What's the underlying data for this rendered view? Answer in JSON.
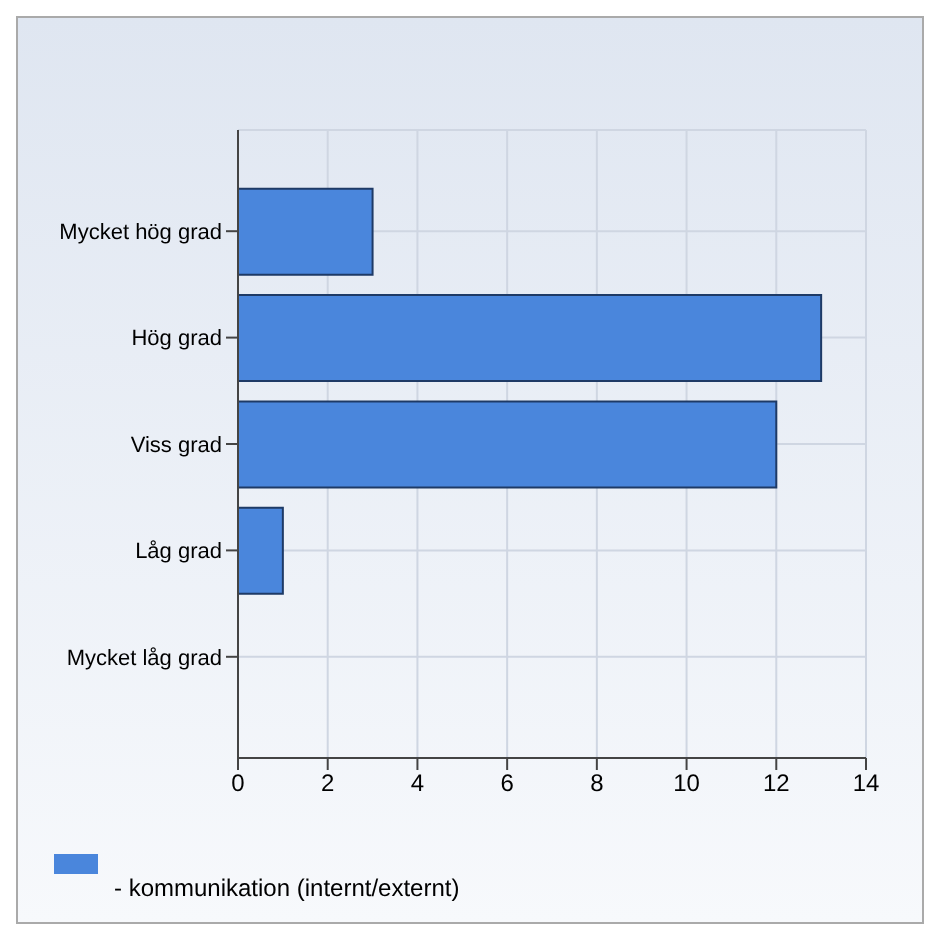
{
  "chart_data": {
    "type": "bar",
    "orientation": "horizontal",
    "categories": [
      "Mycket hög grad",
      "Hög grad",
      "Viss grad",
      "Låg grad",
      "Mycket låg grad"
    ],
    "series": [
      {
        "name": "- kommunikation (internt/externt)",
        "color": "#4a86dc",
        "values": [
          3,
          13,
          12,
          1,
          0
        ]
      }
    ],
    "xlim": [
      0,
      14
    ],
    "xticks": [
      0,
      2,
      4,
      6,
      8,
      10,
      12,
      14
    ],
    "grid": true,
    "legend": "bottom left"
  }
}
